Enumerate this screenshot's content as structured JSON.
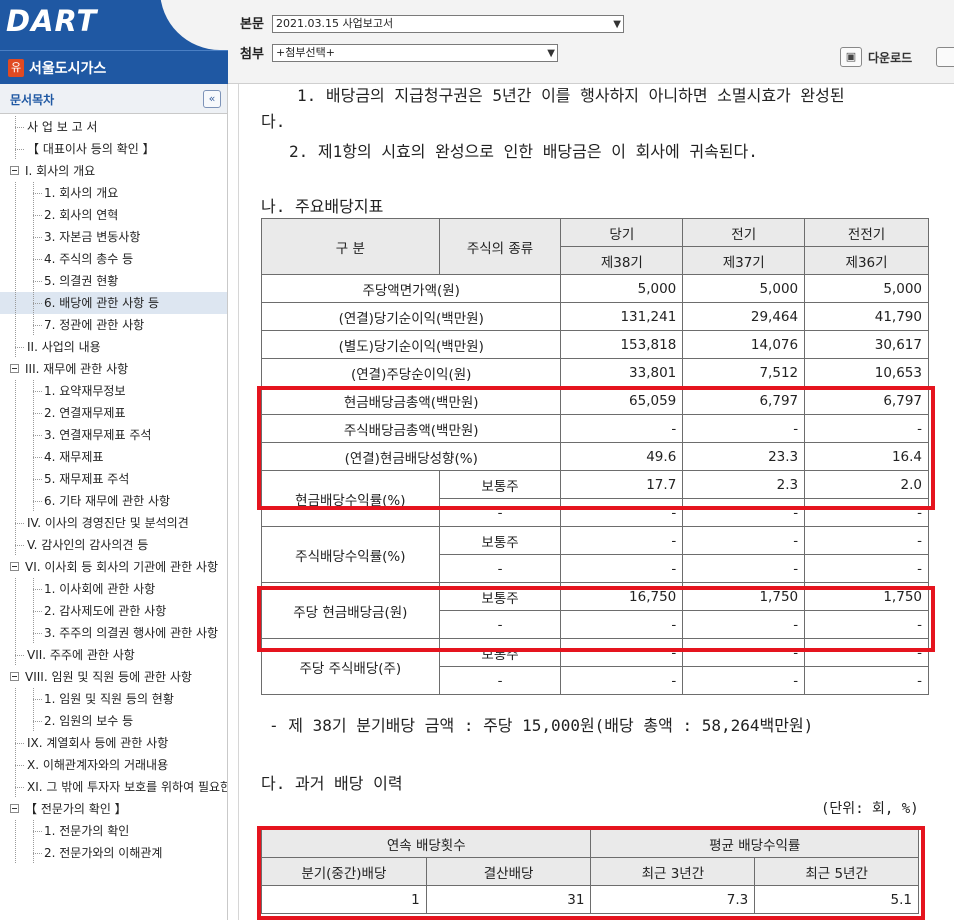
{
  "logo": {
    "text": "DART"
  },
  "company": {
    "icon": "유",
    "name": "서울도시가스"
  },
  "header": {
    "main_label": "본문",
    "main_value": "2021.03.15  사업보고서",
    "attach_label": "첨부",
    "attach_value": "+첨부선택+",
    "download_label": "다운로드"
  },
  "sidebar": {
    "title": "문서목차",
    "collapse_glyph": "«",
    "items": [
      {
        "label": "사 업 보 고 서",
        "level": 0
      },
      {
        "label": "【 대표이사 등의 확인 】",
        "level": 0
      },
      {
        "label": "I. 회사의 개요",
        "level": 0,
        "box": true
      },
      {
        "label": "1. 회사의 개요",
        "level": 1
      },
      {
        "label": "2. 회사의 연혁",
        "level": 1
      },
      {
        "label": "3. 자본금 변동사항",
        "level": 1
      },
      {
        "label": "4. 주식의 총수 등",
        "level": 1
      },
      {
        "label": "5. 의결권 현황",
        "level": 1
      },
      {
        "label": "6. 배당에 관한 사항 등",
        "level": 1,
        "selected": true
      },
      {
        "label": "7. 정관에 관한 사항",
        "level": 1
      },
      {
        "label": "II. 사업의 내용",
        "level": 0
      },
      {
        "label": "III. 재무에 관한 사항",
        "level": 0,
        "box": true
      },
      {
        "label": "1. 요약재무정보",
        "level": 1
      },
      {
        "label": "2. 연결재무제표",
        "level": 1
      },
      {
        "label": "3. 연결재무제표 주석",
        "level": 1
      },
      {
        "label": "4. 재무제표",
        "level": 1
      },
      {
        "label": "5. 재무제표 주석",
        "level": 1
      },
      {
        "label": "6. 기타 재무에 관한 사항",
        "level": 1
      },
      {
        "label": "IV. 이사의 경영진단 및 분석의견",
        "level": 0
      },
      {
        "label": "V. 감사인의 감사의견 등",
        "level": 0
      },
      {
        "label": "VI. 이사회 등 회사의 기관에 관한 사항",
        "level": 0,
        "box": true
      },
      {
        "label": "1. 이사회에 관한 사항",
        "level": 1
      },
      {
        "label": "2. 감사제도에 관한 사항",
        "level": 1
      },
      {
        "label": "3. 주주의 의결권 행사에 관한 사항",
        "level": 1
      },
      {
        "label": "VII. 주주에 관한 사항",
        "level": 0
      },
      {
        "label": "VIII. 임원 및 직원 등에 관한 사항",
        "level": 0,
        "box": true
      },
      {
        "label": "1. 임원 및 직원 등의 현황",
        "level": 1
      },
      {
        "label": "2. 임원의 보수 등",
        "level": 1
      },
      {
        "label": "IX. 계열회사 등에 관한 사항",
        "level": 0
      },
      {
        "label": "X. 이해관계자와의 거래내용",
        "level": 0
      },
      {
        "label": "XI. 그 밖에 투자자 보호를 위하여 필요한 사항",
        "level": 0,
        "hover": true
      },
      {
        "label": "【 전문가의 확인 】",
        "level": 0,
        "box": true
      },
      {
        "label": "1. 전문가의 확인",
        "level": 1
      },
      {
        "label": "2. 전문가와의 이해관계",
        "level": 1
      }
    ]
  },
  "doc": {
    "line1": "1. 배당금의 지급청구권은 5년간 이를 행사하지 아니하면 소멸시효가 완성된",
    "line2": "다.",
    "line3": "2. 제1항의 시효의 완성으로 인한 배당금은 이 회사에 귀속된다.",
    "section_na": "나. 주요배당지표",
    "note": "- 제 38기 분기배당 금액 : 주당 15,000원(배당 총액 : 58,264백만원)",
    "section_da": "다. 과거 배당 이력",
    "unit": "(단위: 회, %)"
  },
  "table1": {
    "h_gubun": "구   분",
    "h_kind": "주식의 종류",
    "h_cur": "당기",
    "h_prev": "전기",
    "h_prev2": "전전기",
    "h_cur_no": "제38기",
    "h_prev_no": "제37기",
    "h_prev2_no": "제36기",
    "rows": [
      {
        "label": "주당액면가액(원)",
        "v": [
          "5,000",
          "5,000",
          "5,000"
        ]
      },
      {
        "label": "(연결)당기순이익(백만원)",
        "v": [
          "131,241",
          "29,464",
          "41,790"
        ]
      },
      {
        "label": "(별도)당기순이익(백만원)",
        "v": [
          "153,818",
          "14,076",
          "30,617"
        ]
      },
      {
        "label": "(연결)주당순이익(원)",
        "v": [
          "33,801",
          "7,512",
          "10,653"
        ]
      },
      {
        "label": "현금배당금총액(백만원)",
        "v": [
          "65,059",
          "6,797",
          "6,797"
        ]
      },
      {
        "label": "주식배당금총액(백만원)",
        "v": [
          "-",
          "-",
          "-"
        ]
      },
      {
        "label": "(연결)현금배당성향(%)",
        "v": [
          "49.6",
          "23.3",
          "16.4"
        ]
      }
    ],
    "groups": [
      {
        "label": "현금배당수익률(%)",
        "r1": {
          "kind": "보통주",
          "v": [
            "17.7",
            "2.3",
            "2.0"
          ]
        },
        "r2": {
          "kind": "-",
          "v": [
            "-",
            "-",
            "-"
          ]
        }
      },
      {
        "label": "주식배당수익률(%)",
        "r1": {
          "kind": "보통주",
          "v": [
            "-",
            "-",
            "-"
          ]
        },
        "r2": {
          "kind": "-",
          "v": [
            "-",
            "-",
            "-"
          ]
        }
      },
      {
        "label": "주당 현금배당금(원)",
        "r1": {
          "kind": "보통주",
          "v": [
            "16,750",
            "1,750",
            "1,750"
          ]
        },
        "r2": {
          "kind": "-",
          "v": [
            "-",
            "-",
            "-"
          ]
        }
      },
      {
        "label": "주당 주식배당(주)",
        "r1": {
          "kind": "보통주",
          "v": [
            "-",
            "-",
            "-"
          ]
        },
        "r2": {
          "kind": "-",
          "v": [
            "-",
            "-",
            "-"
          ]
        }
      }
    ]
  },
  "table2": {
    "h_cont": "연속 배당횟수",
    "h_avg": "평균 배당수익률",
    "h_q": "분기(중간)배당",
    "h_y": "결산배당",
    "h_3": "최근 3년간",
    "h_5": "최근 5년간",
    "v": [
      "1",
      "31",
      "7.3",
      "5.1"
    ]
  },
  "colors": {
    "brand_blue": "#1f58a3",
    "highlight_red": "#e5141e",
    "table_header_bg": "#eaeaea"
  }
}
